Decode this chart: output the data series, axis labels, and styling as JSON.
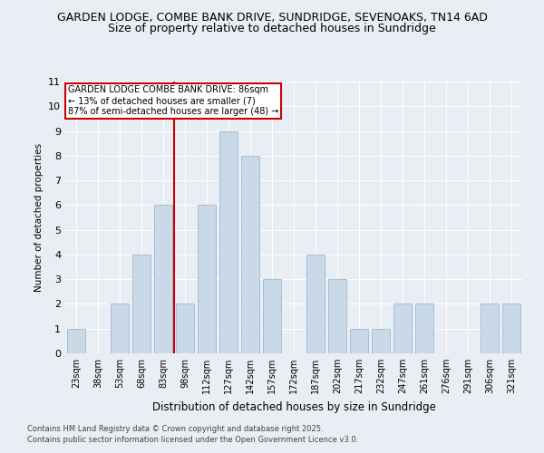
{
  "title1": "GARDEN LODGE, COMBE BANK DRIVE, SUNDRIDGE, SEVENOAKS, TN14 6AD",
  "title2": "Size of property relative to detached houses in Sundridge",
  "xlabel": "Distribution of detached houses by size in Sundridge",
  "ylabel": "Number of detached properties",
  "bar_labels": [
    "23sqm",
    "38sqm",
    "53sqm",
    "68sqm",
    "83sqm",
    "98sqm",
    "112sqm",
    "127sqm",
    "142sqm",
    "157sqm",
    "172sqm",
    "187sqm",
    "202sqm",
    "217sqm",
    "232sqm",
    "247sqm",
    "261sqm",
    "276sqm",
    "291sqm",
    "306sqm",
    "321sqm"
  ],
  "bar_values": [
    1,
    0,
    2,
    4,
    6,
    2,
    6,
    9,
    8,
    3,
    0,
    4,
    3,
    1,
    1,
    2,
    2,
    0,
    0,
    2,
    2
  ],
  "bar_color": "#c9d9e8",
  "bar_edgecolor": "#a0b8cc",
  "vline_index": 4,
  "vline_color": "#cc0000",
  "ylim": [
    0,
    11
  ],
  "yticks": [
    0,
    1,
    2,
    3,
    4,
    5,
    6,
    7,
    8,
    9,
    10,
    11
  ],
  "annotation_title": "GARDEN LODGE COMBE BANK DRIVE: 86sqm",
  "annotation_line1": "← 13% of detached houses are smaller (7)",
  "annotation_line2": "87% of semi-detached houses are larger (48) →",
  "box_color": "#cc0000",
  "footnote1": "Contains HM Land Registry data © Crown copyright and database right 2025.",
  "footnote2": "Contains public sector information licensed under the Open Government Licence v3.0.",
  "background_color": "#e8eef4",
  "grid_color": "#ffffff",
  "title_fontsize": 9,
  "subtitle_fontsize": 9,
  "annot_fontsize": 7,
  "xlabel_fontsize": 8.5,
  "ylabel_fontsize": 7.5,
  "xtick_fontsize": 7,
  "ytick_fontsize": 8,
  "footnote_fontsize": 6
}
